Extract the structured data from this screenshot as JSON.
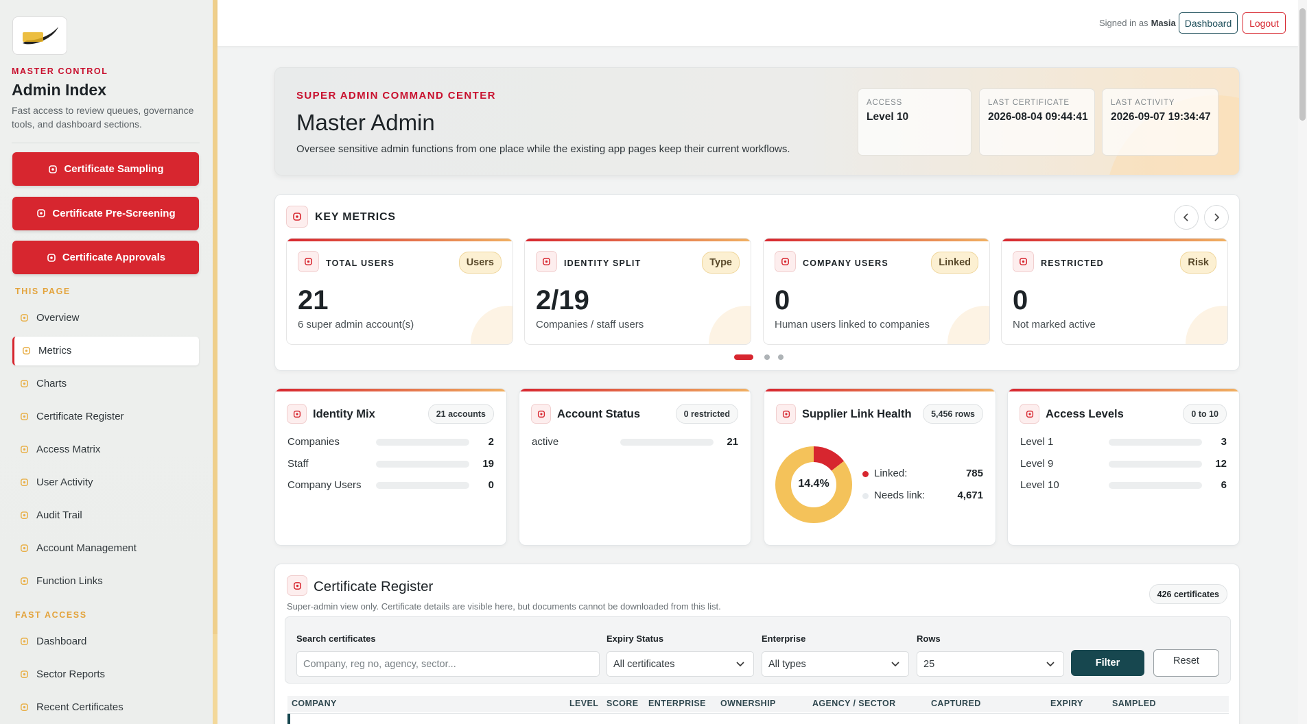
{
  "sidebar": {
    "eyebrow": "MASTER CONTROL",
    "title": "Admin Index",
    "description": "Fast access to review queues, governance tools, and dashboard sections.",
    "buttons": [
      "Certificate Sampling",
      "Certificate Pre-Screening",
      "Certificate Approvals"
    ],
    "sections": [
      {
        "heading": "THIS PAGE",
        "items": [
          {
            "label": "Overview"
          },
          {
            "label": "Metrics",
            "active": true
          },
          {
            "label": "Charts"
          },
          {
            "label": "Certificate Register"
          },
          {
            "label": "Access Matrix"
          },
          {
            "label": "User Activity"
          },
          {
            "label": "Audit Trail"
          },
          {
            "label": "Account Management"
          },
          {
            "label": "Function Links"
          }
        ]
      },
      {
        "heading": "FAST ACCESS",
        "items": [
          {
            "label": "Dashboard"
          },
          {
            "label": "Sector Reports"
          },
          {
            "label": "Recent Certificates"
          }
        ]
      }
    ]
  },
  "topbar": {
    "signed_in_prefix": "Signed in as",
    "user": "Masia",
    "buttons": [
      "Dashboard",
      "Logout"
    ]
  },
  "hero": {
    "eyebrow": "SUPER ADMIN COMMAND CENTER",
    "title": "Master Admin",
    "description": "Oversee sensitive admin functions from one place while the existing app pages keep their current workflows.",
    "stats": [
      {
        "label": "ACCESS",
        "value": "Level 10"
      },
      {
        "label": "LAST CERTIFICATE",
        "value": "2026-08-04 09:44:41"
      },
      {
        "label": "LAST ACTIVITY",
        "value": "2026-09-07 19:34:47"
      }
    ]
  },
  "key_metrics": {
    "title": "KEY METRICS",
    "cards": [
      {
        "label": "TOTAL USERS",
        "badge": "Users",
        "value": "21",
        "caption": "6 super admin account(s)"
      },
      {
        "label": "IDENTITY SPLIT",
        "badge": "Type",
        "value": "2/19",
        "caption": "Companies / staff users"
      },
      {
        "label": "COMPANY USERS",
        "badge": "Linked",
        "value": "0",
        "caption": "Human users linked to companies"
      },
      {
        "label": "RESTRICTED",
        "badge": "Risk",
        "value": "0",
        "caption": "Not marked active"
      }
    ]
  },
  "panels": [
    {
      "title": "Identity Mix",
      "badge": "21 accounts",
      "rows": [
        {
          "label": "Companies",
          "value": 2
        },
        {
          "label": "Staff",
          "value": 19
        },
        {
          "label": "Company Users",
          "value": 0
        }
      ]
    },
    {
      "title": "Account Status",
      "badge": "0 restricted",
      "rows": [
        {
          "label": "active",
          "value": 21
        }
      ]
    },
    {
      "title": "Supplier Link Health",
      "badge": "5,456 rows",
      "donut": {
        "center_label": "14.4%",
        "segments": [
          {
            "name": "Linked:",
            "value": 785,
            "color": "#d7262f"
          },
          {
            "name": "Needs link:",
            "value": 4671,
            "value_label": "4,671",
            "color": "#f4c25a"
          }
        ]
      }
    },
    {
      "title": "Access Levels",
      "badge": "0 to 10",
      "rows": [
        {
          "label": "Level 1",
          "value": 3
        },
        {
          "label": "Level 9",
          "value": 12
        },
        {
          "label": "Level 10",
          "value": 6
        }
      ]
    }
  ],
  "register": {
    "title": "Certificate Register",
    "subtitle": "Super-admin view only. Certificate details are visible here, but documents cannot be downloaded from this list.",
    "badge": "426 certificates",
    "filters": [
      {
        "label": "Search certificates",
        "placeholder": "Company, reg no, agency, sector..."
      },
      {
        "label": "Expiry Status",
        "value": "All certificates"
      },
      {
        "label": "Enterprise",
        "value": "All types"
      },
      {
        "label": "Rows",
        "value": "25"
      }
    ],
    "buttons": [
      "Filter",
      "Reset"
    ],
    "columns": [
      "COMPANY",
      "LEVEL",
      "SCORE",
      "ENTERPRISE",
      "OWNERSHIP",
      "AGENCY / SECTOR",
      "CAPTURED",
      "EXPIRY",
      "SAMPLED"
    ]
  }
}
